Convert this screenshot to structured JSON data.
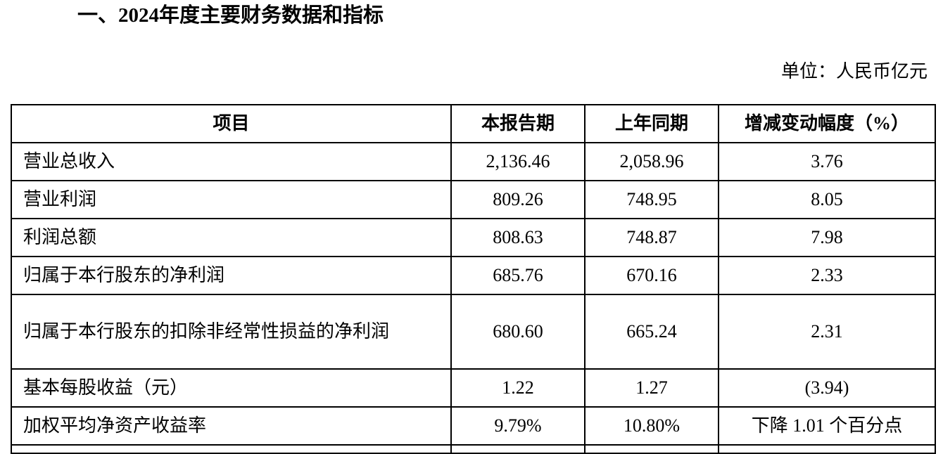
{
  "title": "一、2024年度主要财务数据和指标",
  "unit": "单位：人民币亿元",
  "table": {
    "headers": [
      "项目",
      "本报告期",
      "上年同期",
      "增减变动幅度（%）"
    ],
    "rows": [
      [
        "营业总收入",
        "2,136.46",
        "2,058.96",
        "3.76"
      ],
      [
        "营业利润",
        "809.26",
        "748.95",
        "8.05"
      ],
      [
        "利润总额",
        "808.63",
        "748.87",
        "7.98"
      ],
      [
        "归属于本行股东的净利润",
        "685.76",
        "670.16",
        "2.33"
      ],
      [
        "归属于本行股东的扣除非经常性损益的净利润",
        "680.60",
        "665.24",
        "2.31"
      ],
      [
        "基本每股收益（元）",
        "1.22",
        "1.27",
        "(3.94)"
      ],
      [
        "加权平均净资产收益率",
        "9.79%",
        "10.80%",
        "下降 1.01 个百分点"
      ]
    ]
  }
}
